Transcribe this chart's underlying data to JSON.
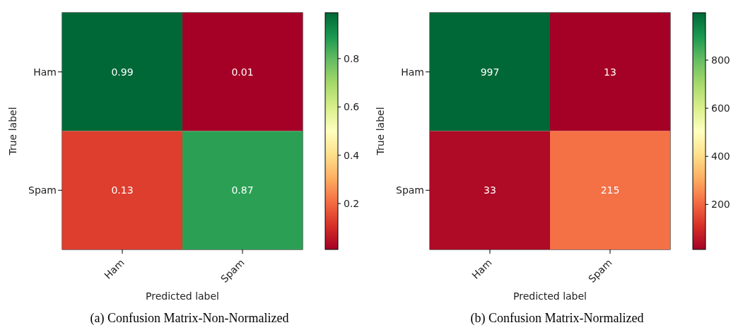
{
  "chart_data": [
    {
      "type": "heatmap",
      "xlabel": "Predicted label",
      "ylabel": "True label",
      "categories": [
        "Ham",
        "Spam"
      ],
      "y_categories": [
        "Ham",
        "Spam"
      ],
      "cells": [
        [
          0.99,
          0.01
        ],
        [
          0.13,
          0.87
        ]
      ],
      "data_labels": true,
      "clim": [
        0.01,
        0.99
      ],
      "cticks": [
        0.2,
        0.4,
        0.6,
        0.8
      ],
      "annotations": [
        "(a) Confusion Matrix-Non-Normalized"
      ]
    },
    {
      "type": "heatmap",
      "xlabel": "Predicted label",
      "ylabel": "True label",
      "categories": [
        "Ham",
        "Spam"
      ],
      "y_categories": [
        "Ham",
        "Spam"
      ],
      "cells": [
        [
          997,
          13
        ],
        [
          33,
          215
        ]
      ],
      "data_labels": true,
      "clim": [
        13,
        997
      ],
      "cticks": [
        200,
        400,
        600,
        800
      ],
      "annotations": [
        "(b) Confusion Matrix-Normalized"
      ]
    }
  ]
}
